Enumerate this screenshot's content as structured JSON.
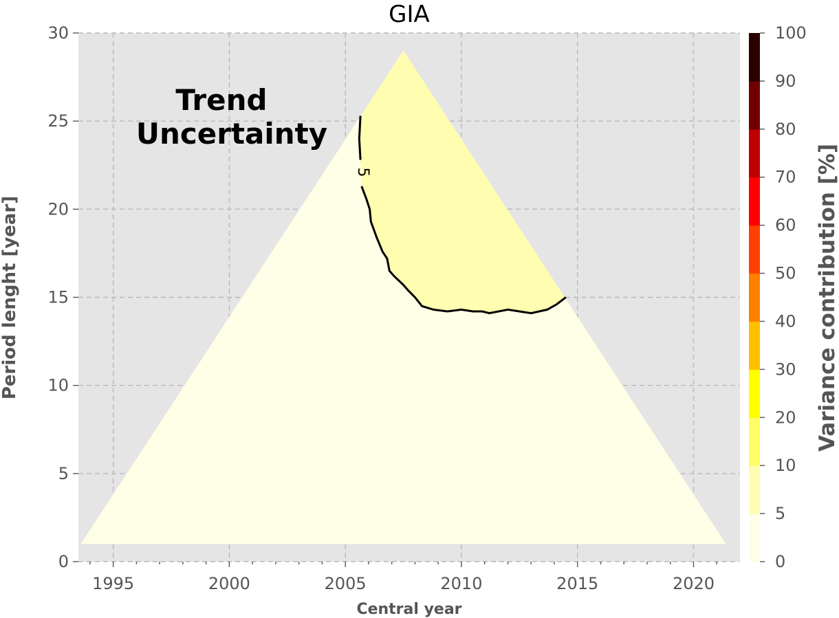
{
  "chart_data": {
    "type": "heatmap",
    "title": "GIA",
    "xlabel": "Central year",
    "ylabel": "Period lenght [year]",
    "xlim": [
      1993.5,
      2022
    ],
    "ylim": [
      0,
      30
    ],
    "x_ticks": [
      1995,
      2000,
      2005,
      2010,
      2015,
      2020
    ],
    "y_ticks": [
      0,
      5,
      10,
      15,
      20,
      25,
      30
    ],
    "x_tick_labels": [
      "1995",
      "2000",
      "2005",
      "2010",
      "2015",
      "2020"
    ],
    "y_tick_labels": [
      "0",
      "5",
      "10",
      "15",
      "20",
      "25",
      "30"
    ],
    "grid": true,
    "annotation": [
      "Trend",
      "Uncertainty"
    ],
    "domain_triangle": [
      [
        1993.6,
        1
      ],
      [
        2007.5,
        29
      ],
      [
        2021.4,
        1
      ]
    ],
    "region_colors": {
      "below_5": "#fffee6",
      "from_5_to_10": "#fffdb0"
    },
    "contour": {
      "level": 5,
      "label": "5",
      "points": [
        [
          2005.65,
          25.3
        ],
        [
          2005.6,
          24.0
        ],
        [
          2005.65,
          22.8
        ],
        [
          2005.7,
          21.3
        ],
        [
          2005.9,
          20.6
        ],
        [
          2006.05,
          20.0
        ],
        [
          2006.1,
          19.3
        ],
        [
          2006.35,
          18.4
        ],
        [
          2006.6,
          17.6
        ],
        [
          2006.8,
          17.2
        ],
        [
          2006.9,
          16.5
        ],
        [
          2007.1,
          16.2
        ],
        [
          2007.5,
          15.7
        ],
        [
          2007.7,
          15.4
        ],
        [
          2008.0,
          15.0
        ],
        [
          2008.3,
          14.5
        ],
        [
          2008.8,
          14.3
        ],
        [
          2009.4,
          14.2
        ],
        [
          2010.0,
          14.3
        ],
        [
          2010.5,
          14.2
        ],
        [
          2010.9,
          14.2
        ],
        [
          2011.2,
          14.1
        ],
        [
          2012.0,
          14.3
        ],
        [
          2013.0,
          14.1
        ],
        [
          2013.7,
          14.3
        ],
        [
          2014.1,
          14.6
        ],
        [
          2014.5,
          15.0
        ]
      ],
      "label_at": [
        2005.75,
        22.1
      ]
    },
    "colorbar": {
      "label": "Variance contribution [%]",
      "levels": [
        0,
        5,
        10,
        20,
        30,
        40,
        50,
        60,
        70,
        80,
        90,
        100
      ],
      "tick_labels": [
        "0",
        "5",
        "10",
        "20",
        "30",
        "40",
        "50",
        "60",
        "70",
        "80",
        "90",
        "100"
      ],
      "colors": [
        "#fffee6",
        "#fffdb0",
        "#fffc66",
        "#ffff00",
        "#ffc000",
        "#ff8000",
        "#ff4000",
        "#ff0000",
        "#bf0000",
        "#700000",
        "#2a0000"
      ]
    }
  }
}
